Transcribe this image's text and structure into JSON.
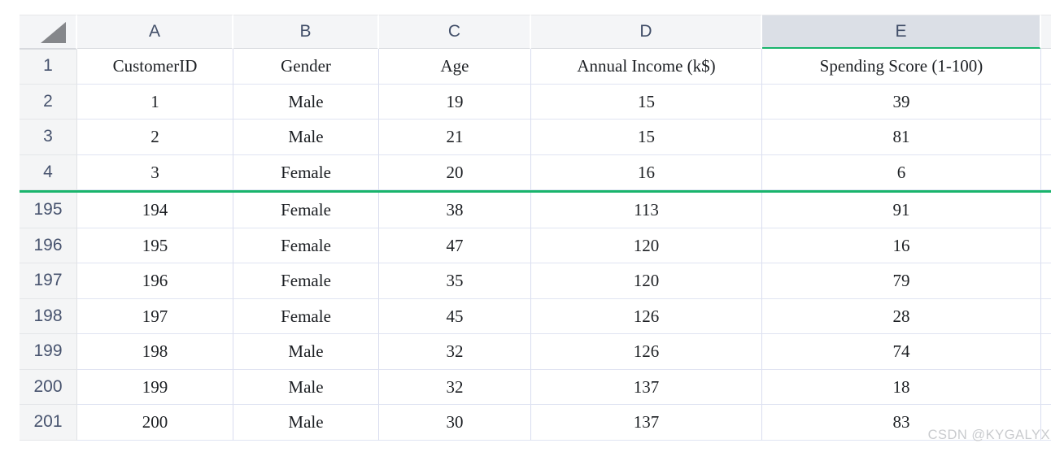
{
  "sheet": {
    "selected_column": "E",
    "columns": {
      "letters": [
        "A",
        "B",
        "C",
        "D",
        "E"
      ]
    },
    "header_row": {
      "num": "1",
      "cells": [
        "CustomerID",
        "Gender",
        "Age",
        "Annual Income (k$)",
        "Spending Score (1-100)"
      ]
    },
    "rows": [
      {
        "num": "2",
        "cells": [
          "1",
          "Male",
          "19",
          "15",
          "39"
        ]
      },
      {
        "num": "3",
        "cells": [
          "2",
          "Male",
          "21",
          "15",
          "81"
        ]
      },
      {
        "num": "4",
        "cells": [
          "3",
          "Female",
          "20",
          "16",
          "6"
        ]
      },
      {
        "num": "195",
        "cells": [
          "194",
          "Female",
          "38",
          "113",
          "91"
        ]
      },
      {
        "num": "196",
        "cells": [
          "195",
          "Female",
          "47",
          "120",
          "16"
        ]
      },
      {
        "num": "197",
        "cells": [
          "196",
          "Female",
          "35",
          "120",
          "79"
        ]
      },
      {
        "num": "198",
        "cells": [
          "197",
          "Female",
          "45",
          "126",
          "28"
        ]
      },
      {
        "num": "199",
        "cells": [
          "198",
          "Male",
          "32",
          "126",
          "74"
        ]
      },
      {
        "num": "200",
        "cells": [
          "199",
          "Male",
          "32",
          "137",
          "18"
        ]
      },
      {
        "num": "201",
        "cells": [
          "200",
          "Male",
          "30",
          "137",
          "83"
        ]
      }
    ],
    "split": {
      "between_rows": [
        "4",
        "195"
      ],
      "hidden_range": "5-194"
    },
    "colors": {
      "accent_green": "#19b46c",
      "selected_column_header_bg": "#dbdfe6",
      "header_bg": "#f4f5f7",
      "gridline": "#d9ddef",
      "header_text": "#414e68",
      "watermark_gray": "#c9cbce"
    }
  },
  "watermark": "CSDN @KYGALYX"
}
